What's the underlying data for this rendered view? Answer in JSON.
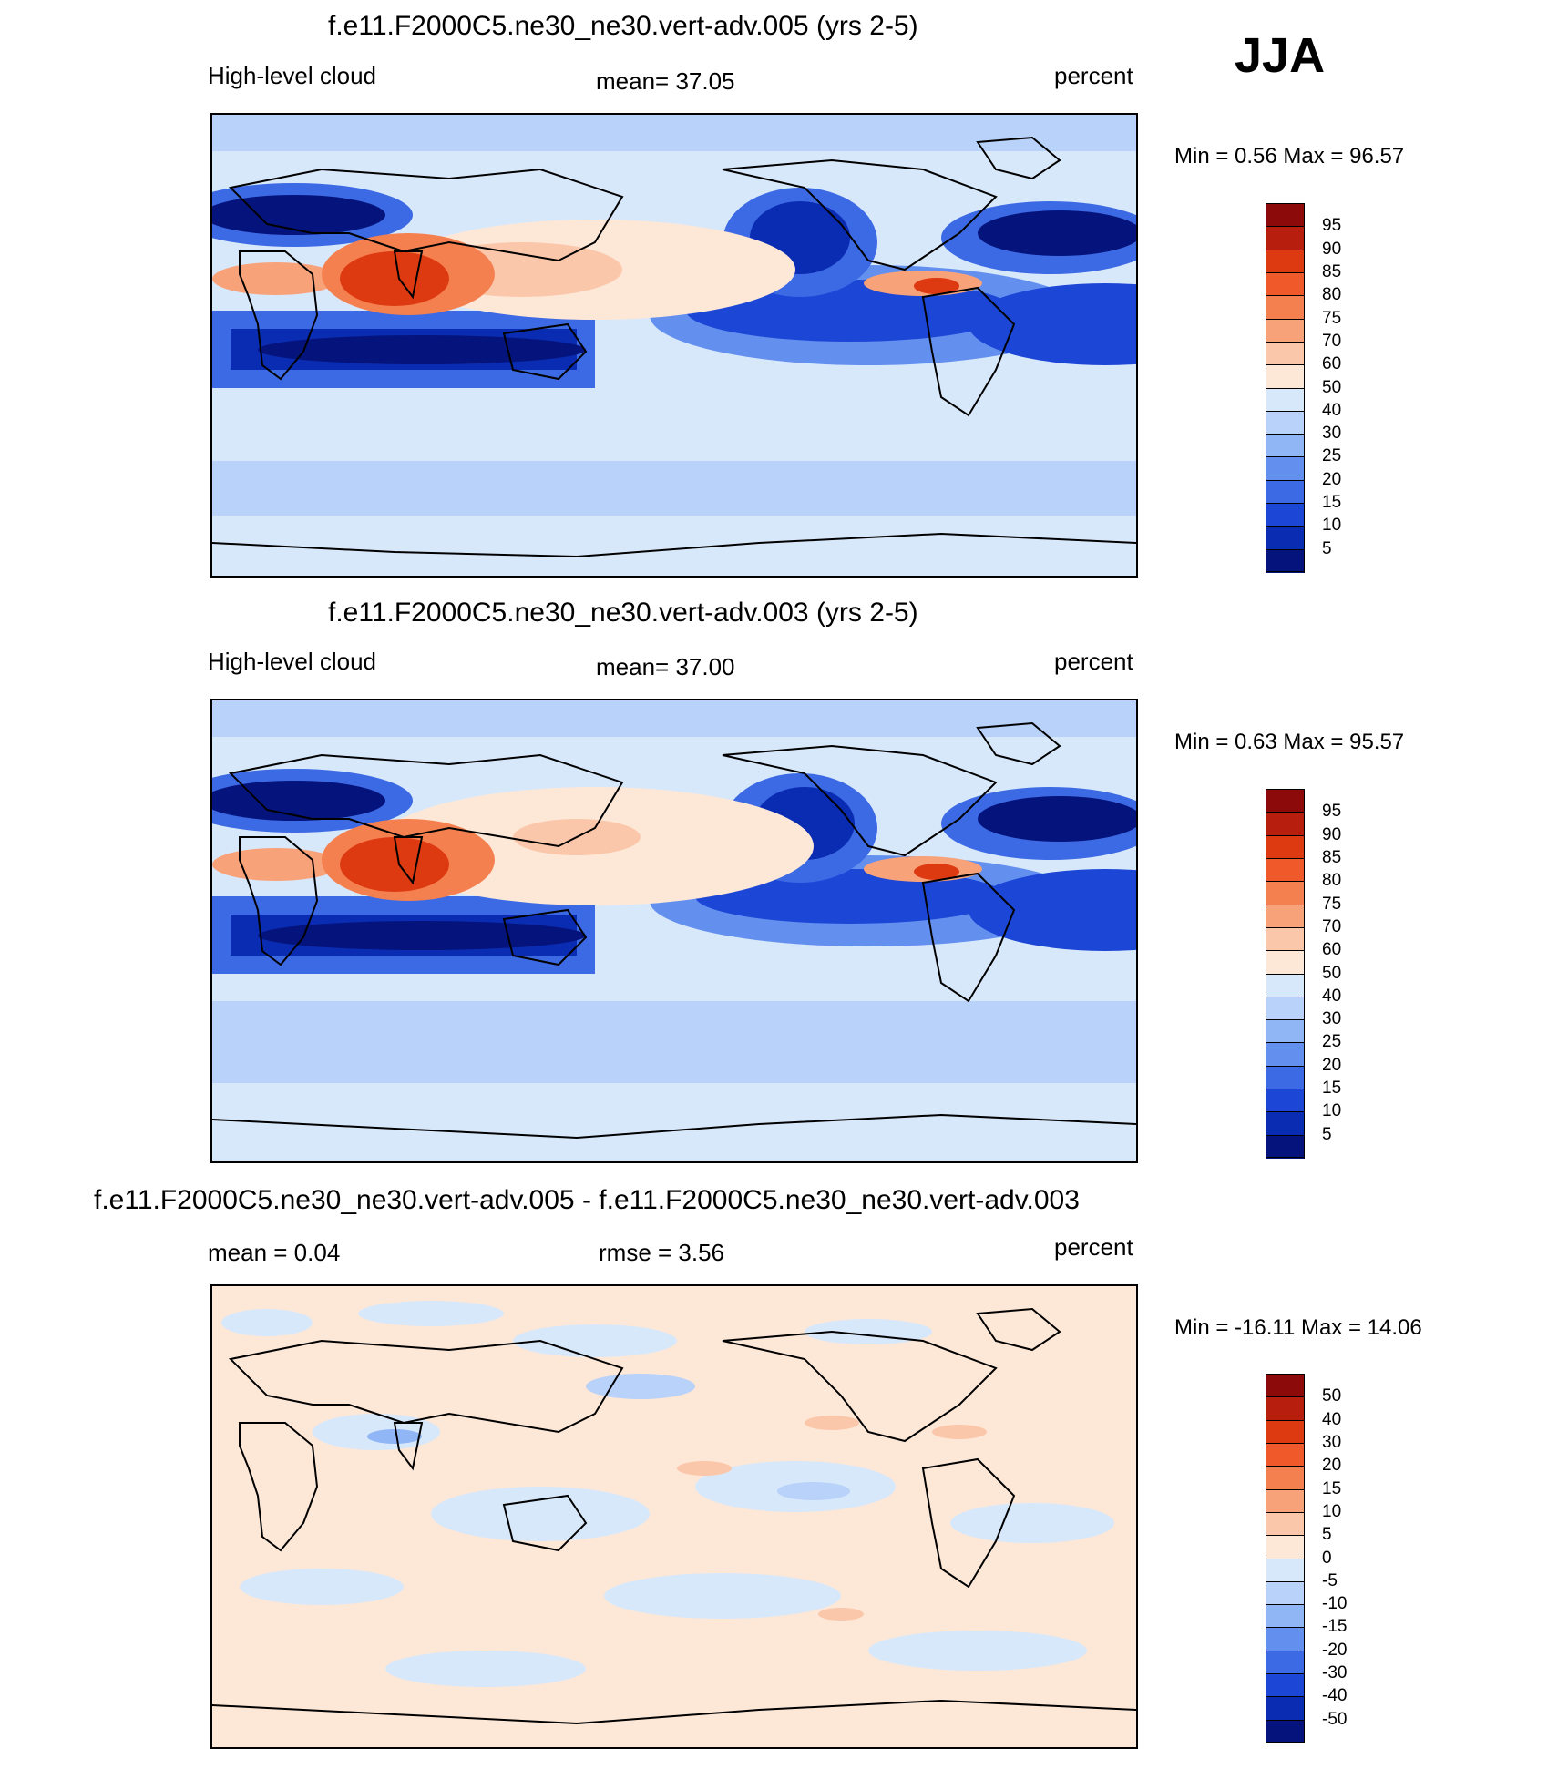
{
  "season": "JJA",
  "panels": [
    {
      "id": "top",
      "title": "f.e11.F2000C5.ne30_ne30.vert-adv.005 (yrs 2-5)",
      "left_label": "High-level cloud",
      "center_label": "mean=  37.05",
      "right_label": "percent",
      "minmax": "Min =    0.56 Max =  96.57",
      "levels": [
        "95",
        "90",
        "85",
        "80",
        "75",
        "70",
        "60",
        "50",
        "40",
        "30",
        "25",
        "20",
        "15",
        "10",
        "5"
      ],
      "palette": [
        "#8c0a0a",
        "#b81e0e",
        "#dd3a12",
        "#f05a2a",
        "#f5804f",
        "#f8a27a",
        "#fbc7aa",
        "#fde7d7",
        "#d8e8fb",
        "#b8d2fa",
        "#90b6f6",
        "#6390ee",
        "#3c69e4",
        "#1c46d6",
        "#0a2cb2",
        "#05147c"
      ],
      "fields": {
        "east_pacific_convection": 82,
        "indian_monsoon": 88,
        "subtropical_minimum": 8
      }
    },
    {
      "id": "middle",
      "title": "f.e11.F2000C5.ne30_ne30.vert-adv.003 (yrs 2-5)",
      "left_label": "High-level cloud",
      "center_label": "mean=  37.00",
      "right_label": "percent",
      "minmax": "Min =    0.63 Max =  95.57",
      "levels": [
        "95",
        "90",
        "85",
        "80",
        "75",
        "70",
        "60",
        "50",
        "40",
        "30",
        "25",
        "20",
        "15",
        "10",
        "5"
      ],
      "palette": [
        "#8c0a0a",
        "#b81e0e",
        "#dd3a12",
        "#f05a2a",
        "#f5804f",
        "#f8a27a",
        "#fbc7aa",
        "#fde7d7",
        "#d8e8fb",
        "#b8d2fa",
        "#90b6f6",
        "#6390ee",
        "#3c69e4",
        "#1c46d6",
        "#0a2cb2",
        "#05147c"
      ],
      "fields": {
        "east_pacific_convection": 80,
        "indian_monsoon": 86,
        "subtropical_minimum": 8
      }
    },
    {
      "id": "bottom",
      "title": "f.e11.F2000C5.ne30_ne30.vert-adv.005 - f.e11.F2000C5.ne30_ne30.vert-adv.003",
      "left_label": "mean =    0.04",
      "center_label": "rmse =    3.56",
      "right_label": "percent",
      "minmax": "Min = -16.11 Max =  14.06",
      "levels": [
        "50",
        "40",
        "30",
        "20",
        "15",
        "10",
        "5",
        "0",
        "-5",
        "-10",
        "-15",
        "-20",
        "-30",
        "-40",
        "-50"
      ],
      "palette": [
        "#8c0a0a",
        "#b81e0e",
        "#dd3a12",
        "#f05a2a",
        "#f5804f",
        "#f8a27a",
        "#fbc7aa",
        "#fde7d7",
        "#d8e8fb",
        "#b8d2fa",
        "#90b6f6",
        "#6390ee",
        "#3c69e4",
        "#1c46d6",
        "#0a2cb2",
        "#05147c"
      ]
    }
  ]
}
